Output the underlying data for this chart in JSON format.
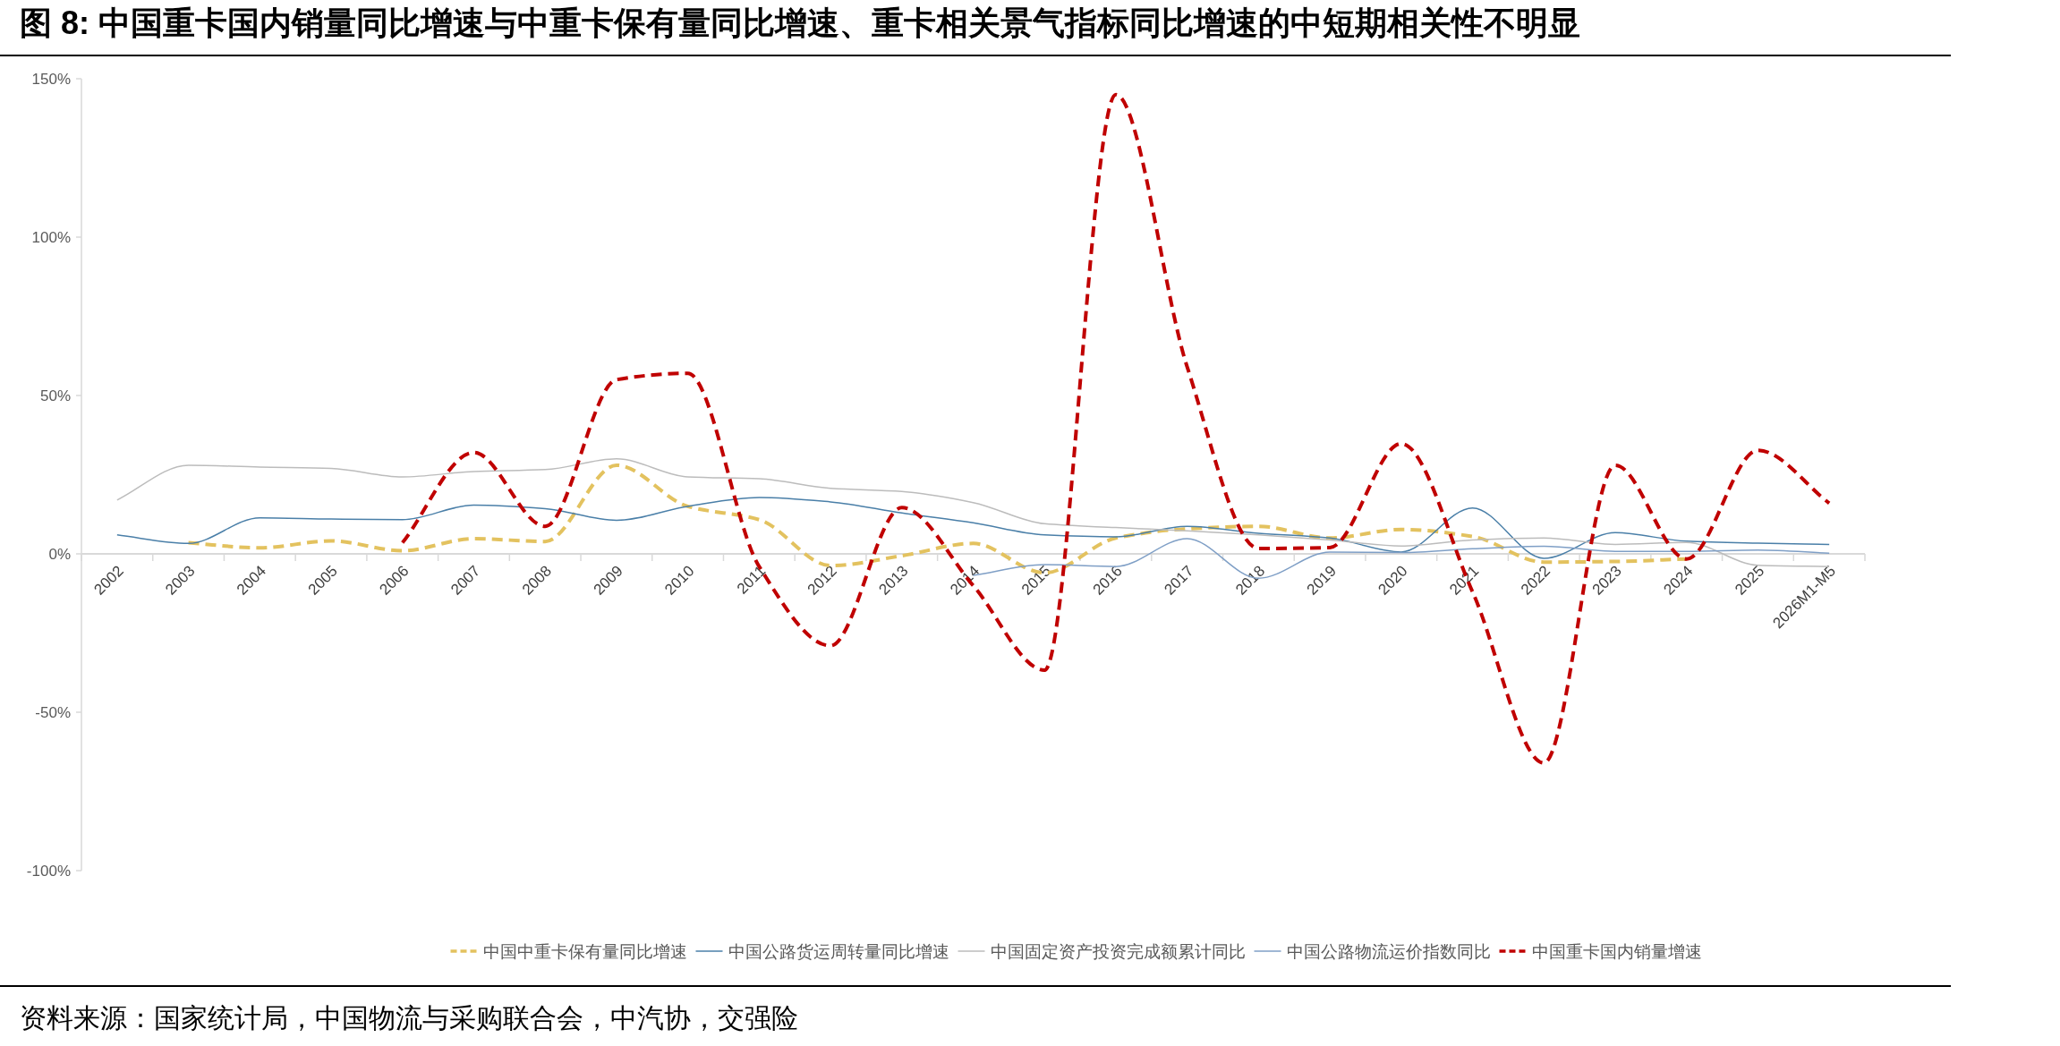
{
  "chart_data": {
    "type": "line",
    "title": "图 8: 中国重卡国内销量同比增速与中重卡保有量同比增速、重卡相关景气指标同比增速的中短期相关性不明显",
    "categories": [
      "2002",
      "2003",
      "2004",
      "2005",
      "2006",
      "2007",
      "2008",
      "2009",
      "2010",
      "2011",
      "2012",
      "2013",
      "2014",
      "2015",
      "2016",
      "2017",
      "2018",
      "2019",
      "2020",
      "2021",
      "2022",
      "2023",
      "2024",
      "2025",
      "2026M1-M5"
    ],
    "ylim": [
      -100,
      150
    ],
    "yticks": [
      {
        "value": -100,
        "label": "-100%"
      },
      {
        "value": -50,
        "label": "-50%"
      },
      {
        "value": 0,
        "label": "0%"
      },
      {
        "value": 50,
        "label": "50%"
      },
      {
        "value": 100,
        "label": "100%"
      },
      {
        "value": 150,
        "label": "150%"
      }
    ],
    "legend": "bottom",
    "marker": "none",
    "series": [
      {
        "name": "中国中重卡保有量同比增速",
        "color": "#e3c25f",
        "line_style": "dashed",
        "values": [
          null,
          3.5,
          1.9,
          4.1,
          1,
          4.8,
          3.9,
          28,
          15,
          10.8,
          -3.7,
          -0.6,
          3.3,
          -6,
          5,
          7.9,
          8.7,
          5,
          7.7,
          5.5,
          -2.6,
          -2.4,
          -1.6,
          null,
          null
        ]
      },
      {
        "name": "中国公路货运周转量同比增速",
        "color": "#4a7fa8",
        "line_style": "solid",
        "values": [
          6,
          3.3,
          11.4,
          11,
          10.8,
          15.4,
          14.3,
          10.6,
          15,
          17.8,
          16.4,
          12.9,
          9.8,
          6,
          5.4,
          8.7,
          6.5,
          5,
          0.6,
          14.5,
          -1.4,
          6.7,
          4,
          3.4,
          3
        ]
      },
      {
        "name": "中国固定资产投资完成额累计同比",
        "color": "#bcbcbc",
        "line_style": "solid",
        "values": [
          17,
          28,
          27.4,
          27,
          24.3,
          26,
          26.6,
          30,
          24.3,
          23.7,
          20.7,
          19.7,
          16.2,
          9.5,
          8.3,
          7.3,
          6,
          4.4,
          2.5,
          4.4,
          5,
          3,
          3.6,
          -3.6,
          -4
        ]
      },
      {
        "name": "中国公路物流运价指数同比",
        "color": "#7f9fc6",
        "line_style": "solid",
        "values": [
          null,
          null,
          null,
          null,
          null,
          null,
          null,
          null,
          null,
          null,
          null,
          null,
          -6.8,
          -3.4,
          -4,
          4.8,
          -7.7,
          0.6,
          0.4,
          1.6,
          2.4,
          0.8,
          0.8,
          1.2,
          0.2
        ]
      },
      {
        "name": "中国重卡国内销量增速",
        "color": "#c00000",
        "line_style": "dashed",
        "values": [
          null,
          null,
          null,
          null,
          3.5,
          32,
          8.7,
          55,
          57,
          -4,
          -29,
          14.6,
          -10,
          -36.7,
          145,
          59,
          1.7,
          2,
          34.8,
          -12,
          -66,
          28,
          -1.6,
          32.7,
          16
        ]
      }
    ],
    "annotations": [
      "资料来源：国家统计局，中国物流与采购联合会，中汽协，交强险"
    ]
  }
}
